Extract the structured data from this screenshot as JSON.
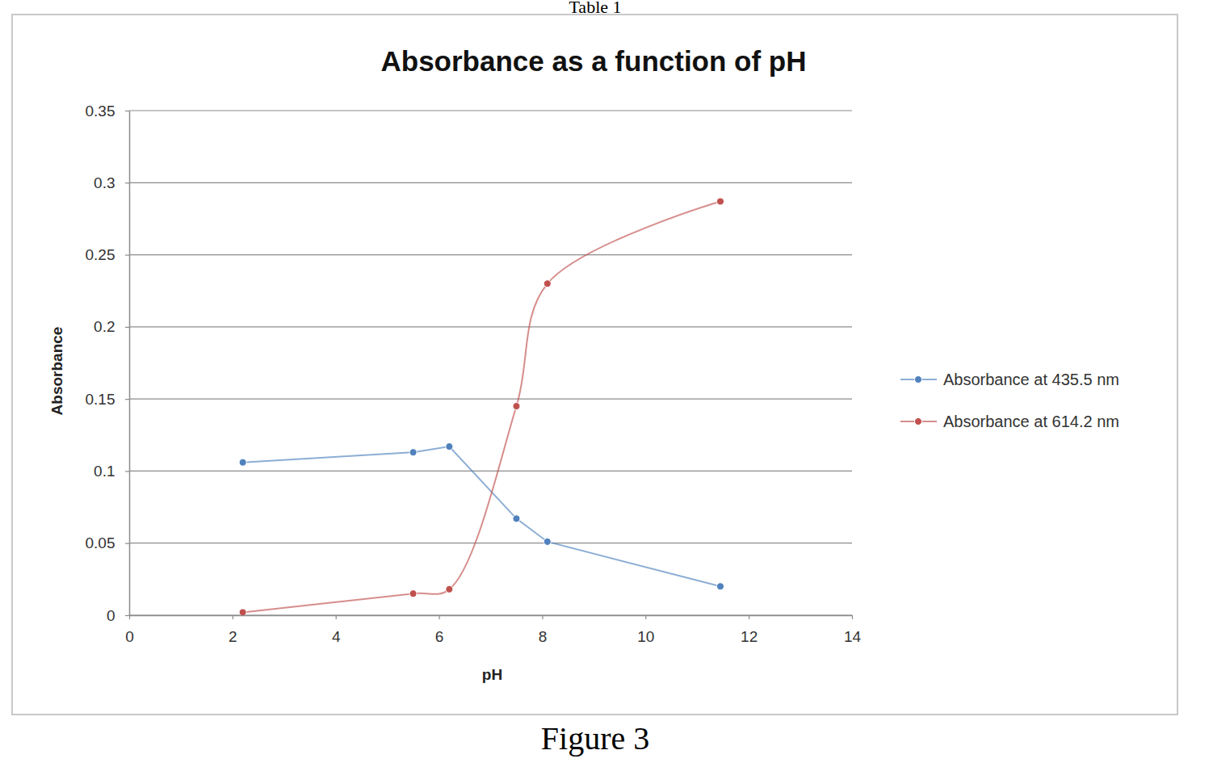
{
  "chart_data": {
    "type": "line",
    "title": "Absorbance as a function of pH",
    "x_label": "pH",
    "y_label": "Absorbance",
    "annotations": [
      "Table 1",
      "Figure 3"
    ],
    "x": [
      2.2,
      5.5,
      6.2,
      7.5,
      8.1,
      11.45
    ],
    "series": [
      {
        "name": "Absorbance at 435.5 nm",
        "color": "#4f81bd",
        "marker": "circle",
        "line_style": "straight",
        "values": [
          0.106,
          0.113,
          0.117,
          0.067,
          0.051,
          0.02
        ]
      },
      {
        "name": "Absorbance at 614.2 nm",
        "color": "#c0504d",
        "marker": "circle",
        "line_style": "smooth",
        "values": [
          0.002,
          0.015,
          0.018,
          0.145,
          0.23,
          0.287
        ]
      }
    ],
    "xlim": [
      0,
      14
    ],
    "xticks": [
      0,
      2,
      4,
      6,
      8,
      10,
      12,
      14
    ],
    "ylim": [
      0,
      0.35
    ],
    "yticks": [
      0,
      0.05,
      0.1,
      0.15,
      0.2,
      0.25,
      0.3,
      0.35
    ],
    "grid": true,
    "legend": "right"
  }
}
